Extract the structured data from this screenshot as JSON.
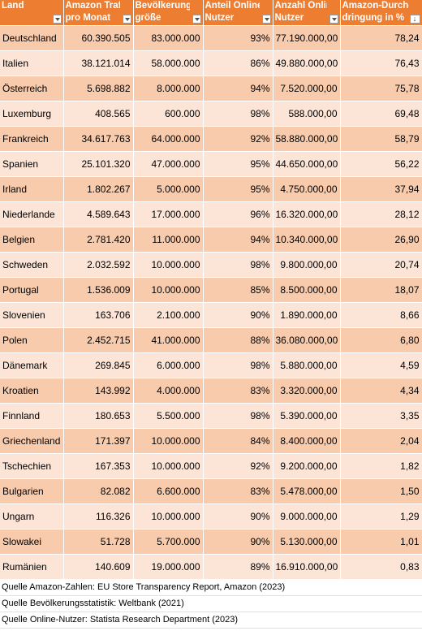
{
  "columns": [
    {
      "lines": [
        "Land"
      ],
      "control": "filter"
    },
    {
      "lines": [
        "Amazon Traffic",
        "pro Monat"
      ],
      "control": "filter"
    },
    {
      "lines": [
        "Bevölkerungs-",
        "größe"
      ],
      "control": "filter"
    },
    {
      "lines": [
        "Anteil Online-",
        "Nutzer"
      ],
      "control": "filter"
    },
    {
      "lines": [
        "Anzahl Online-",
        "Nutzer"
      ],
      "control": "filter"
    },
    {
      "lines": [
        "Amazon-Durch-",
        "dringung in %"
      ],
      "control": "sort"
    }
  ],
  "rows": [
    [
      "Deutschland",
      "60.390.505",
      "83.000.000",
      "93%",
      "77.190.000,00",
      "78,24"
    ],
    [
      "Italien",
      "38.121.014",
      "58.000.000",
      "86%",
      "49.880.000,00",
      "76,43"
    ],
    [
      "Österreich",
      "5.698.882",
      "8.000.000",
      "94%",
      "7.520.000,00",
      "75,78"
    ],
    [
      "Luxemburg",
      "408.565",
      "600.000",
      "98%",
      "588.000,00",
      "69,48"
    ],
    [
      "Frankreich",
      "34.617.763",
      "64.000.000",
      "92%",
      "58.880.000,00",
      "58,79"
    ],
    [
      "Spanien",
      "25.101.320",
      "47.000.000",
      "95%",
      "44.650.000,00",
      "56,22"
    ],
    [
      "Irland",
      "1.802.267",
      "5.000.000",
      "95%",
      "4.750.000,00",
      "37,94"
    ],
    [
      "Niederlande",
      "4.589.643",
      "17.000.000",
      "96%",
      "16.320.000,00",
      "28,12"
    ],
    [
      "Belgien",
      "2.781.420",
      "11.000.000",
      "94%",
      "10.340.000,00",
      "26,90"
    ],
    [
      "Schweden",
      "2.032.592",
      "10.000.000",
      "98%",
      "9.800.000,00",
      "20,74"
    ],
    [
      "Portugal",
      "1.536.009",
      "10.000.000",
      "85%",
      "8.500.000,00",
      "18,07"
    ],
    [
      "Slovenien",
      "163.706",
      "2.100.000",
      "90%",
      "1.890.000,00",
      "8,66"
    ],
    [
      "Polen",
      "2.452.715",
      "41.000.000",
      "88%",
      "36.080.000,00",
      "6,80"
    ],
    [
      "Dänemark",
      "269.845",
      "6.000.000",
      "98%",
      "5.880.000,00",
      "4,59"
    ],
    [
      "Kroatien",
      "143.992",
      "4.000.000",
      "83%",
      "3.320.000,00",
      "4,34"
    ],
    [
      "Finnland",
      "180.653",
      "5.500.000",
      "98%",
      "5.390.000,00",
      "3,35"
    ],
    [
      "Griechenland",
      "171.397",
      "10.000.000",
      "84%",
      "8.400.000,00",
      "2,04"
    ],
    [
      "Tschechien",
      "167.353",
      "10.000.000",
      "92%",
      "9.200.000,00",
      "1,82"
    ],
    [
      "Bulgarien",
      "82.082",
      "6.600.000",
      "83%",
      "5.478.000,00",
      "1,50"
    ],
    [
      "Ungarn",
      "116.326",
      "10.000.000",
      "90%",
      "9.000.000,00",
      "1,29"
    ],
    [
      "Slowakei",
      "51.728",
      "5.700.000",
      "90%",
      "5.130.000,00",
      "1,01"
    ],
    [
      "Rumänien",
      "140.609",
      "19.000.000",
      "89%",
      "16.910.000,00",
      "0,83"
    ]
  ],
  "sources": [
    "Quelle Amazon-Zahlen: EU Store Transparency Report, Amazon (2023)",
    "Quelle Bevölkerungsstatistik: Weltbank (2021)",
    "Quelle Online-Nutzer: Statista Research Department (2023)"
  ],
  "sort_indicator": "↓",
  "colors": {
    "header_bg": "#ED7D31",
    "header_text": "#FFFFFF",
    "row_dark": "#F8CBAD",
    "row_light": "#FCE4D6"
  }
}
